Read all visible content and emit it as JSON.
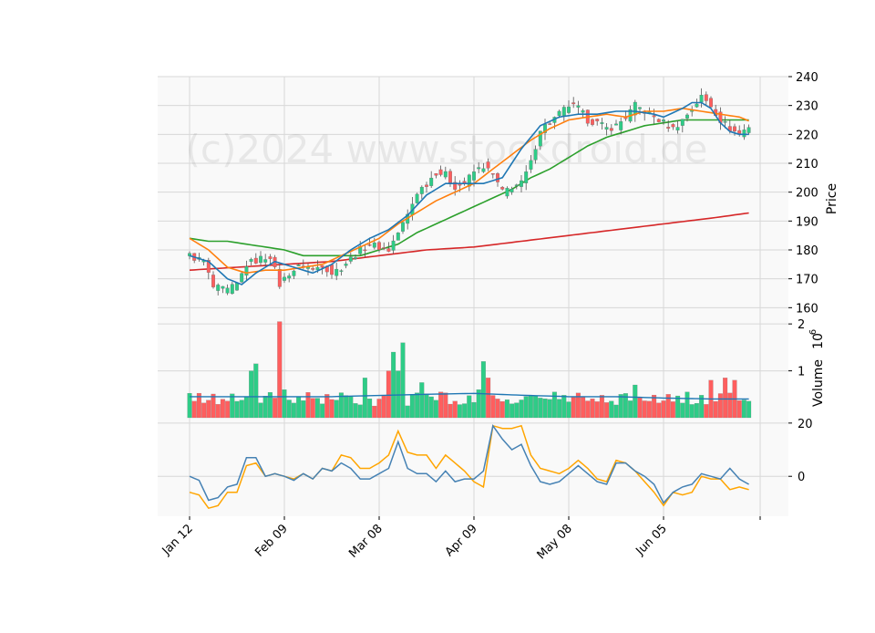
{
  "chart_data": {
    "type": "candlestick",
    "watermark": "(c)2024 www.stockdroid.de",
    "colors": {
      "up": "#2ecc87",
      "down": "#ff5e5e",
      "panel_bg": "#f9f9f9",
      "grid": "#d8d8d8",
      "ma_fast": "#1f77b4",
      "ma_mid": "#ff7f0e",
      "ma_slow": "#2ca02c",
      "ma_long": "#d62728",
      "vol_ma": "#1f77b4",
      "osc_a": "#4682b4",
      "osc_b": "#ffa500"
    },
    "x_tick_labels": [
      "Jan 12",
      "Feb 09",
      "Mar 08",
      "Apr 09",
      "May 08",
      "Jun 05"
    ],
    "x_tick_index": [
      0,
      20,
      40,
      60,
      80,
      100
    ],
    "n_bars": 119,
    "price_panel": {
      "ylabel": "Price",
      "ylim": [
        156,
        240
      ],
      "yticks": [
        160,
        170,
        180,
        190,
        200,
        210,
        220,
        230,
        240
      ]
    },
    "volume_panel": {
      "ylabel": "Volume",
      "exponent_label": "6",
      "ylim": [
        0,
        2.1
      ],
      "yticks": [
        1,
        2
      ]
    },
    "oscillator_panel": {
      "ylim": [
        -15,
        22
      ],
      "yticks": [
        0,
        20
      ]
    },
    "close_keypoints": [
      [
        0,
        178
      ],
      [
        3,
        176
      ],
      [
        5,
        167
      ],
      [
        8,
        166
      ],
      [
        10,
        168
      ],
      [
        12,
        175
      ],
      [
        15,
        177
      ],
      [
        17,
        178
      ],
      [
        19,
        168
      ],
      [
        21,
        172
      ],
      [
        24,
        175
      ],
      [
        26,
        173
      ],
      [
        28,
        175
      ],
      [
        30,
        172
      ],
      [
        32,
        174
      ],
      [
        34,
        177
      ],
      [
        36,
        180
      ],
      [
        38,
        182
      ],
      [
        40,
        181
      ],
      [
        42,
        180
      ],
      [
        44,
        186
      ],
      [
        46,
        192
      ],
      [
        48,
        200
      ],
      [
        50,
        203
      ],
      [
        52,
        207
      ],
      [
        54,
        206
      ],
      [
        56,
        202
      ],
      [
        58,
        203
      ],
      [
        60,
        207
      ],
      [
        62,
        209
      ],
      [
        64,
        206
      ],
      [
        66,
        200
      ],
      [
        68,
        202
      ],
      [
        70,
        203
      ],
      [
        72,
        210
      ],
      [
        74,
        222
      ],
      [
        76,
        224
      ],
      [
        78,
        227
      ],
      [
        80,
        230
      ],
      [
        82,
        229
      ],
      [
        84,
        225
      ],
      [
        86,
        224
      ],
      [
        88,
        222
      ],
      [
        90,
        223
      ],
      [
        92,
        226
      ],
      [
        94,
        230
      ],
      [
        96,
        228
      ],
      [
        98,
        226
      ],
      [
        100,
        224
      ],
      [
        102,
        222
      ],
      [
        104,
        225
      ],
      [
        106,
        229
      ],
      [
        108,
        233
      ],
      [
        110,
        230
      ],
      [
        112,
        225
      ],
      [
        114,
        222
      ],
      [
        116,
        220
      ],
      [
        118,
        223
      ],
      [
        119,
        218
      ]
    ],
    "ma_fast_keypoints": [
      [
        0,
        178
      ],
      [
        4,
        176
      ],
      [
        8,
        170
      ],
      [
        11,
        168
      ],
      [
        14,
        172
      ],
      [
        18,
        176
      ],
      [
        22,
        174
      ],
      [
        26,
        172
      ],
      [
        30,
        175
      ],
      [
        34,
        180
      ],
      [
        38,
        184
      ],
      [
        42,
        187
      ],
      [
        46,
        192
      ],
      [
        50,
        199
      ],
      [
        54,
        203
      ],
      [
        58,
        203
      ],
      [
        62,
        203
      ],
      [
        66,
        205
      ],
      [
        70,
        215
      ],
      [
        74,
        223
      ],
      [
        78,
        226
      ],
      [
        82,
        227
      ],
      [
        86,
        227
      ],
      [
        90,
        228
      ],
      [
        94,
        228
      ],
      [
        98,
        227
      ],
      [
        100,
        226
      ],
      [
        104,
        229
      ],
      [
        106,
        231
      ],
      [
        108,
        231
      ],
      [
        110,
        229
      ],
      [
        112,
        224
      ],
      [
        114,
        221
      ],
      [
        116,
        220
      ],
      [
        119,
        220
      ]
    ],
    "ma_mid_keypoints": [
      [
        0,
        184
      ],
      [
        4,
        180
      ],
      [
        8,
        174
      ],
      [
        12,
        172
      ],
      [
        16,
        173
      ],
      [
        20,
        173
      ],
      [
        24,
        174
      ],
      [
        28,
        175
      ],
      [
        32,
        178
      ],
      [
        36,
        181
      ],
      [
        40,
        184
      ],
      [
        44,
        189
      ],
      [
        48,
        193
      ],
      [
        52,
        197
      ],
      [
        56,
        200
      ],
      [
        60,
        203
      ],
      [
        64,
        208
      ],
      [
        68,
        213
      ],
      [
        72,
        218
      ],
      [
        76,
        222
      ],
      [
        80,
        225
      ],
      [
        84,
        226
      ],
      [
        88,
        227
      ],
      [
        92,
        226
      ],
      [
        96,
        228
      ],
      [
        100,
        228
      ],
      [
        104,
        229
      ],
      [
        108,
        228
      ],
      [
        112,
        227
      ],
      [
        116,
        226
      ],
      [
        119,
        224
      ]
    ],
    "ma_slow_keypoints": [
      [
        0,
        184
      ],
      [
        4,
        183
      ],
      [
        8,
        183
      ],
      [
        12,
        182
      ],
      [
        16,
        181
      ],
      [
        20,
        180
      ],
      [
        24,
        178
      ],
      [
        28,
        178
      ],
      [
        32,
        178
      ],
      [
        36,
        178
      ],
      [
        40,
        180
      ],
      [
        44,
        182
      ],
      [
        48,
        186
      ],
      [
        52,
        189
      ],
      [
        56,
        192
      ],
      [
        60,
        195
      ],
      [
        64,
        198
      ],
      [
        68,
        201
      ],
      [
        72,
        205
      ],
      [
        76,
        208
      ],
      [
        80,
        212
      ],
      [
        84,
        216
      ],
      [
        88,
        219
      ],
      [
        92,
        221
      ],
      [
        96,
        223
      ],
      [
        100,
        224
      ],
      [
        104,
        225
      ],
      [
        108,
        225
      ],
      [
        112,
        225
      ],
      [
        116,
        225
      ],
      [
        119,
        225
      ]
    ],
    "ma_long_keypoints": [
      [
        0,
        173
      ],
      [
        10,
        174
      ],
      [
        20,
        175
      ],
      [
        30,
        176
      ],
      [
        40,
        178
      ],
      [
        50,
        180
      ],
      [
        60,
        181
      ],
      [
        70,
        183
      ],
      [
        80,
        185
      ],
      [
        90,
        187
      ],
      [
        100,
        189
      ],
      [
        110,
        191
      ],
      [
        119,
        193
      ]
    ],
    "volume_ma_keypoints": [
      [
        0,
        0.45
      ],
      [
        30,
        0.45
      ],
      [
        50,
        0.5
      ],
      [
        60,
        0.52
      ],
      [
        70,
        0.48
      ],
      [
        80,
        0.45
      ],
      [
        90,
        0.45
      ],
      [
        100,
        0.42
      ],
      [
        110,
        0.4
      ],
      [
        119,
        0.4
      ]
    ],
    "volume_spikes": [
      [
        13,
        1.0
      ],
      [
        14,
        1.15
      ],
      [
        19,
        2.05
      ],
      [
        20,
        0.6
      ],
      [
        37,
        0.85
      ],
      [
        42,
        1.0
      ],
      [
        43,
        1.4
      ],
      [
        44,
        1.0
      ],
      [
        45,
        1.6
      ],
      [
        47,
        0.5
      ],
      [
        49,
        0.75
      ],
      [
        53,
        0.55
      ],
      [
        61,
        0.6
      ],
      [
        62,
        1.2
      ],
      [
        63,
        0.85
      ],
      [
        77,
        0.55
      ],
      [
        94,
        0.7
      ],
      [
        101,
        0.5
      ],
      [
        105,
        0.55
      ],
      [
        110,
        0.8
      ],
      [
        113,
        0.85
      ],
      [
        115,
        0.8
      ]
    ],
    "osc_a_keypoints": [
      [
        0,
        0
      ],
      [
        2,
        -1.5
      ],
      [
        4,
        -9
      ],
      [
        6,
        -8
      ],
      [
        8,
        -4
      ],
      [
        10,
        -3
      ],
      [
        12,
        7
      ],
      [
        14,
        7
      ],
      [
        16,
        0
      ],
      [
        18,
        1
      ],
      [
        20,
        0
      ],
      [
        22,
        -1.5
      ],
      [
        24,
        1
      ],
      [
        26,
        -1
      ],
      [
        28,
        3
      ],
      [
        30,
        2
      ],
      [
        32,
        5
      ],
      [
        34,
        3
      ],
      [
        36,
        -1
      ],
      [
        38,
        -1
      ],
      [
        40,
        1
      ],
      [
        42,
        3
      ],
      [
        44,
        13
      ],
      [
        46,
        3
      ],
      [
        48,
        1
      ],
      [
        50,
        1
      ],
      [
        52,
        -2
      ],
      [
        54,
        2
      ],
      [
        56,
        -2
      ],
      [
        58,
        -1
      ],
      [
        60,
        -1
      ],
      [
        62,
        2
      ],
      [
        64,
        19
      ],
      [
        66,
        14
      ],
      [
        68,
        10
      ],
      [
        70,
        12
      ],
      [
        72,
        4
      ],
      [
        74,
        -2
      ],
      [
        76,
        -3
      ],
      [
        78,
        -2
      ],
      [
        80,
        1
      ],
      [
        82,
        4
      ],
      [
        84,
        1
      ],
      [
        86,
        -2
      ],
      [
        88,
        -3
      ],
      [
        90,
        5
      ],
      [
        92,
        5
      ],
      [
        94,
        2
      ],
      [
        96,
        0
      ],
      [
        98,
        -3
      ],
      [
        100,
        -10
      ],
      [
        102,
        -6
      ],
      [
        104,
        -4
      ],
      [
        106,
        -3
      ],
      [
        108,
        1
      ],
      [
        110,
        0
      ],
      [
        112,
        -1
      ],
      [
        114,
        3
      ],
      [
        116,
        -1
      ],
      [
        118,
        -3
      ]
    ],
    "osc_b_keypoints": [
      [
        0,
        -6
      ],
      [
        2,
        -7
      ],
      [
        4,
        -12
      ],
      [
        6,
        -11
      ],
      [
        8,
        -6
      ],
      [
        10,
        -6
      ],
      [
        12,
        4
      ],
      [
        14,
        5
      ],
      [
        16,
        0
      ],
      [
        18,
        1
      ],
      [
        20,
        0
      ],
      [
        22,
        -1
      ],
      [
        24,
        1
      ],
      [
        26,
        -1
      ],
      [
        28,
        3
      ],
      [
        30,
        2
      ],
      [
        32,
        8
      ],
      [
        34,
        7
      ],
      [
        36,
        3
      ],
      [
        38,
        3
      ],
      [
        40,
        5
      ],
      [
        42,
        8
      ],
      [
        44,
        17
      ],
      [
        46,
        9
      ],
      [
        48,
        8
      ],
      [
        50,
        8
      ],
      [
        52,
        3
      ],
      [
        54,
        8
      ],
      [
        56,
        5
      ],
      [
        58,
        2
      ],
      [
        60,
        -2
      ],
      [
        62,
        -4
      ],
      [
        64,
        19
      ],
      [
        66,
        18
      ],
      [
        68,
        18
      ],
      [
        70,
        19
      ],
      [
        72,
        8
      ],
      [
        74,
        3
      ],
      [
        76,
        2
      ],
      [
        78,
        1
      ],
      [
        80,
        3
      ],
      [
        82,
        6
      ],
      [
        84,
        3
      ],
      [
        86,
        -1
      ],
      [
        88,
        -2
      ],
      [
        90,
        6
      ],
      [
        92,
        5
      ],
      [
        94,
        2
      ],
      [
        96,
        -2
      ],
      [
        98,
        -6
      ],
      [
        100,
        -11
      ],
      [
        102,
        -6
      ],
      [
        104,
        -7
      ],
      [
        106,
        -6
      ],
      [
        108,
        0
      ],
      [
        110,
        -1
      ],
      [
        112,
        -1
      ],
      [
        114,
        -5
      ],
      [
        116,
        -4
      ],
      [
        118,
        -5
      ]
    ]
  }
}
